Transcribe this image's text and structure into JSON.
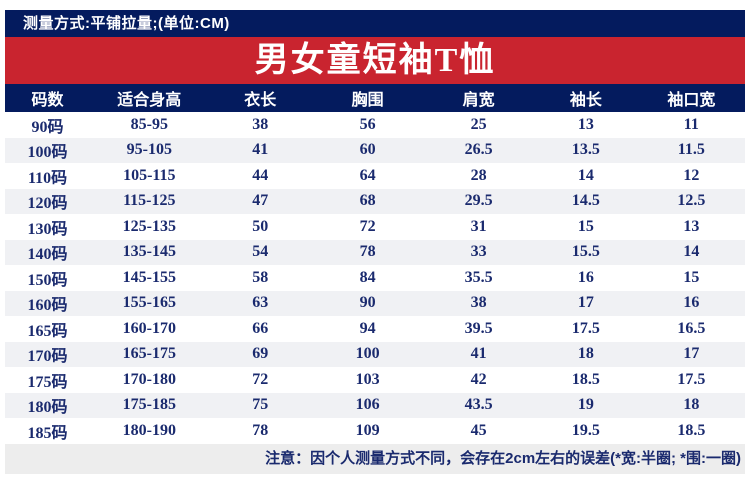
{
  "header": {
    "measure_note": "测量方式:平铺拉量;(单位:CM)",
    "title": "男女童短袖T恤"
  },
  "footer": {
    "note": "注意：因个人测量方式不同，会存在2cm左右的误差(*宽:半圈; *围:一圈)"
  },
  "colors": {
    "navy": "#041b5e",
    "red": "#c9242f",
    "ink": "#1a2a6e",
    "row_alt": "#f0f1f4",
    "note_bg": "#ededed"
  },
  "table": {
    "headers": [
      "码数",
      "适合身高",
      "衣长",
      "胸围",
      "肩宽",
      "袖长",
      "袖口宽"
    ],
    "col_widths": [
      "11.5%",
      "16%",
      "14%",
      "15%",
      "15%",
      "14%",
      "14.5%"
    ],
    "rows": [
      [
        "90码",
        "85-95",
        "38",
        "56",
        "25",
        "13",
        "11"
      ],
      [
        "100码",
        "95-105",
        "41",
        "60",
        "26.5",
        "13.5",
        "11.5"
      ],
      [
        "110码",
        "105-115",
        "44",
        "64",
        "28",
        "14",
        "12"
      ],
      [
        "120码",
        "115-125",
        "47",
        "68",
        "29.5",
        "14.5",
        "12.5"
      ],
      [
        "130码",
        "125-135",
        "50",
        "72",
        "31",
        "15",
        "13"
      ],
      [
        "140码",
        "135-145",
        "54",
        "78",
        "33",
        "15.5",
        "14"
      ],
      [
        "150码",
        "145-155",
        "58",
        "84",
        "35.5",
        "16",
        "15"
      ],
      [
        "160码",
        "155-165",
        "63",
        "90",
        "38",
        "17",
        "16"
      ],
      [
        "165码",
        "160-170",
        "66",
        "94",
        "39.5",
        "17.5",
        "16.5"
      ],
      [
        "170码",
        "165-175",
        "69",
        "100",
        "41",
        "18",
        "17"
      ],
      [
        "175码",
        "170-180",
        "72",
        "103",
        "42",
        "18.5",
        "17.5"
      ],
      [
        "180码",
        "175-185",
        "75",
        "106",
        "43.5",
        "19",
        "18"
      ],
      [
        "185码",
        "180-190",
        "78",
        "109",
        "45",
        "19.5",
        "18.5"
      ]
    ]
  }
}
